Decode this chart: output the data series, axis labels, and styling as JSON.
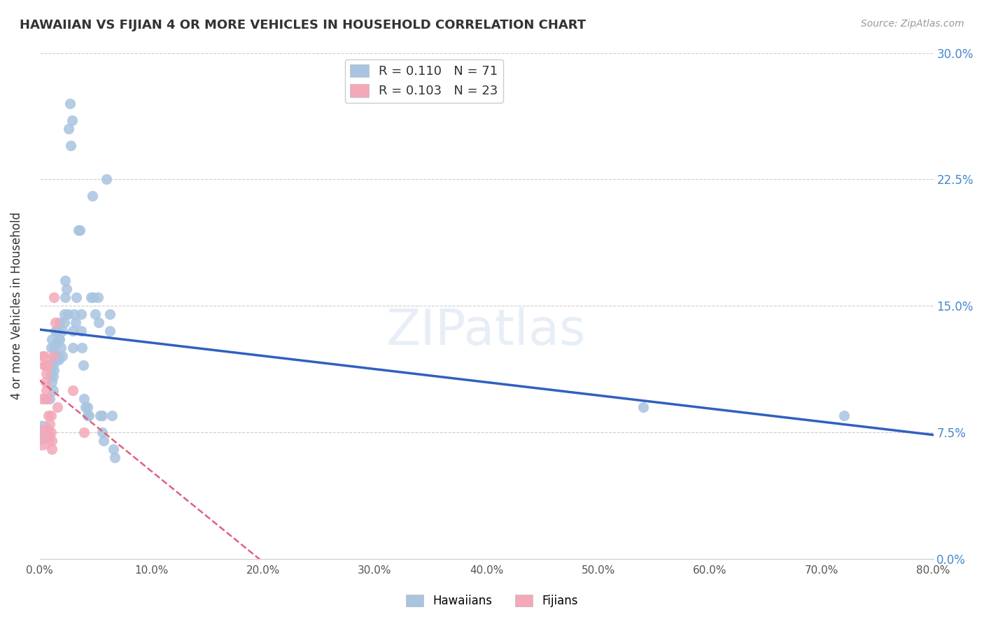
{
  "title": "HAWAIIAN VS FIJIAN 4 OR MORE VEHICLES IN HOUSEHOLD CORRELATION CHART",
  "source": "Source: ZipAtlas.com",
  "xlabel_ticks": [
    "0.0%",
    "10.0%",
    "20.0%",
    "30.0%",
    "40.0%",
    "50.0%",
    "60.0%",
    "70.0%",
    "80.0%"
  ],
  "ylabel_label": "4 or more Vehicles in Household",
  "ylabel_ticks": [
    "0.0%",
    "7.5%",
    "15.0%",
    "22.5%",
    "30.0%"
  ],
  "xlim": [
    0.0,
    0.8
  ],
  "ylim": [
    0.0,
    0.3
  ],
  "legend_r1": "R = 0.110",
  "legend_n1": "N = 71",
  "legend_r2": "R = 0.103",
  "legend_n2": "N = 23",
  "hawaiian_color": "#a8c4e0",
  "fijian_color": "#f4a8b8",
  "trend_hawaiian_color": "#3060c0",
  "trend_fijian_color": "#e06080",
  "watermark": "ZIPatlas",
  "hawaiian_points": [
    [
      0.005,
      0.095
    ],
    [
      0.007,
      0.115
    ],
    [
      0.008,
      0.115
    ],
    [
      0.009,
      0.095
    ],
    [
      0.01,
      0.125
    ],
    [
      0.01,
      0.11
    ],
    [
      0.011,
      0.13
    ],
    [
      0.011,
      0.105
    ],
    [
      0.012,
      0.115
    ],
    [
      0.012,
      0.108
    ],
    [
      0.012,
      0.1
    ],
    [
      0.013,
      0.125
    ],
    [
      0.013,
      0.118
    ],
    [
      0.013,
      0.112
    ],
    [
      0.014,
      0.135
    ],
    [
      0.014,
      0.12
    ],
    [
      0.015,
      0.128
    ],
    [
      0.015,
      0.118
    ],
    [
      0.016,
      0.135
    ],
    [
      0.016,
      0.12
    ],
    [
      0.017,
      0.13
    ],
    [
      0.017,
      0.118
    ],
    [
      0.018,
      0.14
    ],
    [
      0.018,
      0.13
    ],
    [
      0.019,
      0.125
    ],
    [
      0.02,
      0.135
    ],
    [
      0.02,
      0.12
    ],
    [
      0.022,
      0.145
    ],
    [
      0.022,
      0.14
    ],
    [
      0.023,
      0.165
    ],
    [
      0.023,
      0.155
    ],
    [
      0.024,
      0.16
    ],
    [
      0.025,
      0.145
    ],
    [
      0.026,
      0.255
    ],
    [
      0.027,
      0.27
    ],
    [
      0.028,
      0.245
    ],
    [
      0.029,
      0.26
    ],
    [
      0.03,
      0.135
    ],
    [
      0.03,
      0.125
    ],
    [
      0.031,
      0.145
    ],
    [
      0.032,
      0.14
    ],
    [
      0.033,
      0.155
    ],
    [
      0.035,
      0.195
    ],
    [
      0.036,
      0.195
    ],
    [
      0.037,
      0.145
    ],
    [
      0.037,
      0.135
    ],
    [
      0.038,
      0.125
    ],
    [
      0.039,
      0.115
    ],
    [
      0.04,
      0.095
    ],
    [
      0.041,
      0.09
    ],
    [
      0.043,
      0.09
    ],
    [
      0.043,
      0.085
    ],
    [
      0.044,
      0.085
    ],
    [
      0.046,
      0.155
    ],
    [
      0.047,
      0.215
    ],
    [
      0.048,
      0.155
    ],
    [
      0.05,
      0.145
    ],
    [
      0.052,
      0.155
    ],
    [
      0.053,
      0.14
    ],
    [
      0.054,
      0.085
    ],
    [
      0.056,
      0.085
    ],
    [
      0.056,
      0.075
    ],
    [
      0.057,
      0.07
    ],
    [
      0.06,
      0.225
    ],
    [
      0.063,
      0.145
    ],
    [
      0.063,
      0.135
    ],
    [
      0.065,
      0.085
    ],
    [
      0.066,
      0.065
    ],
    [
      0.067,
      0.06
    ],
    [
      0.54,
      0.09
    ],
    [
      0.72,
      0.085
    ]
  ],
  "fijian_points": [
    [
      0.002,
      0.095
    ],
    [
      0.003,
      0.12
    ],
    [
      0.004,
      0.12
    ],
    [
      0.004,
      0.115
    ],
    [
      0.005,
      0.115
    ],
    [
      0.005,
      0.105
    ],
    [
      0.006,
      0.11
    ],
    [
      0.006,
      0.1
    ],
    [
      0.007,
      0.115
    ],
    [
      0.007,
      0.095
    ],
    [
      0.008,
      0.085
    ],
    [
      0.008,
      0.075
    ],
    [
      0.009,
      0.08
    ],
    [
      0.01,
      0.085
    ],
    [
      0.01,
      0.075
    ],
    [
      0.011,
      0.07
    ],
    [
      0.011,
      0.065
    ],
    [
      0.012,
      0.12
    ],
    [
      0.013,
      0.155
    ],
    [
      0.014,
      0.14
    ],
    [
      0.016,
      0.09
    ],
    [
      0.03,
      0.1
    ],
    [
      0.04,
      0.075
    ]
  ],
  "fijian_large_point": [
    0.0015,
    0.072
  ],
  "hawaiian_large_point": [
    0.0015,
    0.075
  ]
}
